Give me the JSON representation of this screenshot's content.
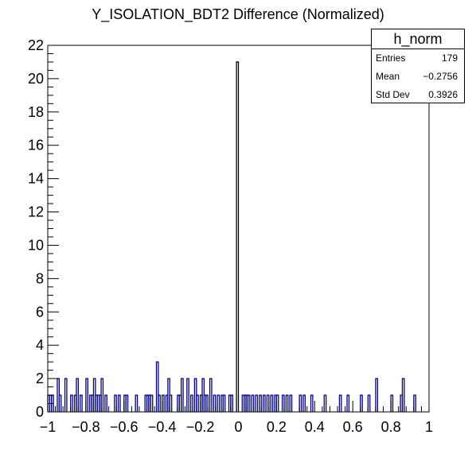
{
  "chart_data": {
    "type": "bar",
    "title": "Y_ISOLATION_BDT2 Difference (Normalized)",
    "xlabel": "",
    "ylabel": "",
    "xlim": [
      -1,
      1
    ],
    "ylim": [
      0,
      22
    ],
    "xticks": [
      "−1",
      "−0.8",
      "−0.6",
      "−0.4",
      "−0.2",
      "0",
      "0.2",
      "0.4",
      "0.6",
      "0.8",
      "1"
    ],
    "yticks": [
      "0",
      "2",
      "4",
      "6",
      "8",
      "10",
      "12",
      "14",
      "16",
      "18",
      "20",
      "22"
    ],
    "grid": false,
    "bar_color": "#00008b",
    "bins": [
      {
        "x": -0.995,
        "y": 1
      },
      {
        "x": -0.985,
        "y": 1
      },
      {
        "x": -0.975,
        "y": 1
      },
      {
        "x": -0.945,
        "y": 2
      },
      {
        "x": -0.935,
        "y": 1
      },
      {
        "x": -0.905,
        "y": 2
      },
      {
        "x": -0.875,
        "y": 1
      },
      {
        "x": -0.855,
        "y": 1
      },
      {
        "x": -0.845,
        "y": 2
      },
      {
        "x": -0.825,
        "y": 1
      },
      {
        "x": -0.795,
        "y": 2
      },
      {
        "x": -0.775,
        "y": 1
      },
      {
        "x": -0.765,
        "y": 1
      },
      {
        "x": -0.755,
        "y": 2
      },
      {
        "x": -0.745,
        "y": 1
      },
      {
        "x": -0.735,
        "y": 1
      },
      {
        "x": -0.725,
        "y": 1
      },
      {
        "x": -0.715,
        "y": 2
      },
      {
        "x": -0.695,
        "y": 1
      },
      {
        "x": -0.645,
        "y": 1
      },
      {
        "x": -0.625,
        "y": 1
      },
      {
        "x": -0.595,
        "y": 1
      },
      {
        "x": -0.585,
        "y": 1
      },
      {
        "x": -0.535,
        "y": 1
      },
      {
        "x": -0.485,
        "y": 1
      },
      {
        "x": -0.475,
        "y": 1
      },
      {
        "x": -0.465,
        "y": 1
      },
      {
        "x": -0.455,
        "y": 1
      },
      {
        "x": -0.425,
        "y": 3
      },
      {
        "x": -0.415,
        "y": 1
      },
      {
        "x": -0.395,
        "y": 1
      },
      {
        "x": -0.375,
        "y": 1
      },
      {
        "x": -0.365,
        "y": 2
      },
      {
        "x": -0.355,
        "y": 1
      },
      {
        "x": -0.315,
        "y": 1
      },
      {
        "x": -0.305,
        "y": 1
      },
      {
        "x": -0.295,
        "y": 2
      },
      {
        "x": -0.265,
        "y": 2
      },
      {
        "x": -0.245,
        "y": 1
      },
      {
        "x": -0.225,
        "y": 2
      },
      {
        "x": -0.215,
        "y": 1
      },
      {
        "x": -0.195,
        "y": 1
      },
      {
        "x": -0.185,
        "y": 2
      },
      {
        "x": -0.175,
        "y": 1
      },
      {
        "x": -0.165,
        "y": 1
      },
      {
        "x": -0.145,
        "y": 2
      },
      {
        "x": -0.125,
        "y": 1
      },
      {
        "x": -0.105,
        "y": 1
      },
      {
        "x": -0.085,
        "y": 1
      },
      {
        "x": -0.075,
        "y": 1
      },
      {
        "x": -0.045,
        "y": 1
      },
      {
        "x": -0.035,
        "y": 1
      },
      {
        "x": -0.005,
        "y": 21
      },
      {
        "x": 0.025,
        "y": 1
      },
      {
        "x": 0.035,
        "y": 1
      },
      {
        "x": 0.045,
        "y": 1
      },
      {
        "x": 0.055,
        "y": 1
      },
      {
        "x": 0.075,
        "y": 1
      },
      {
        "x": 0.095,
        "y": 1
      },
      {
        "x": 0.115,
        "y": 1
      },
      {
        "x": 0.135,
        "y": 1
      },
      {
        "x": 0.155,
        "y": 1
      },
      {
        "x": 0.175,
        "y": 1
      },
      {
        "x": 0.195,
        "y": 1
      },
      {
        "x": 0.205,
        "y": 1
      },
      {
        "x": 0.235,
        "y": 1
      },
      {
        "x": 0.255,
        "y": 1
      },
      {
        "x": 0.275,
        "y": 1
      },
      {
        "x": 0.325,
        "y": 1
      },
      {
        "x": 0.345,
        "y": 1
      },
      {
        "x": 0.385,
        "y": 1
      },
      {
        "x": 0.455,
        "y": 1
      },
      {
        "x": 0.535,
        "y": 1
      },
      {
        "x": 0.575,
        "y": 1
      },
      {
        "x": 0.645,
        "y": 1
      },
      {
        "x": 0.685,
        "y": 1
      },
      {
        "x": 0.725,
        "y": 2
      },
      {
        "x": 0.805,
        "y": 1
      },
      {
        "x": 0.855,
        "y": 1
      },
      {
        "x": 0.865,
        "y": 2
      },
      {
        "x": 0.925,
        "y": 1
      }
    ],
    "stats": {
      "name": "h_norm",
      "rows": [
        {
          "label": "Entries",
          "value": "179"
        },
        {
          "label": "Mean",
          "value": "−0.2756"
        },
        {
          "label": "Std Dev",
          "value": "0.3926"
        }
      ]
    }
  }
}
